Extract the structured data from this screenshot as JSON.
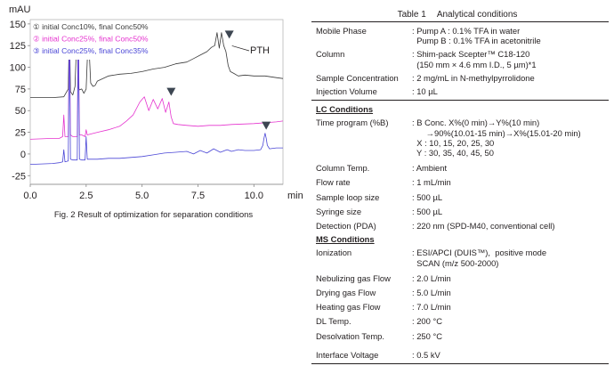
{
  "chart_data": {
    "type": "line",
    "ylabel": "mAU",
    "xlabel": "min",
    "xlim": [
      0,
      11.3
    ],
    "ylim": [
      -35,
      155
    ],
    "x_ticks": [
      "0.0",
      "2.5",
      "5.0",
      "7.5",
      "10.0"
    ],
    "x_tick_values": [
      0,
      2.5,
      5.0,
      7.5,
      10.0
    ],
    "y_ticks": [
      "150",
      "125",
      "100",
      "75",
      "50",
      "25",
      "0",
      "-25"
    ],
    "y_tick_values": [
      150,
      125,
      100,
      75,
      50,
      25,
      0,
      -25
    ],
    "legend": [
      {
        "marker": "①",
        "label": "initial Conc10%, final Conc50%",
        "color": "#3a3a3a"
      },
      {
        "marker": "②",
        "label": "initial Conc25%, final Conc50%",
        "color": "#e533cf"
      },
      {
        "marker": "③",
        "label": "initial Conc25%, final Conc35%",
        "color": "#4a46d6"
      }
    ],
    "legend_placement": "top-left",
    "annotation": "PTH",
    "series": [
      {
        "color": "#3a3a3a",
        "x": [
          0.0,
          1.0,
          1.5,
          1.7,
          1.75,
          1.8,
          1.85,
          1.9,
          2.0,
          2.1,
          2.15,
          2.2,
          2.3,
          2.4,
          2.5,
          2.6,
          2.7,
          2.8,
          2.9,
          3.0,
          3.5,
          4.0,
          4.5,
          5.0,
          5.5,
          6.0,
          6.5,
          7.0,
          7.3,
          7.6,
          7.9,
          8.1,
          8.25,
          8.35,
          8.45,
          8.55,
          8.65,
          8.75,
          8.85,
          8.95,
          9.1,
          9.3,
          9.6,
          10.0,
          10.5,
          11.0,
          11.3
        ],
        "y": [
          65,
          65,
          66,
          75,
          150,
          72,
          70,
          68,
          78,
          150,
          76,
          74,
          75,
          70,
          75,
          140,
          82,
          78,
          79,
          84,
          90,
          92,
          93,
          95,
          98,
          100,
          104,
          106,
          110,
          114,
          118,
          123,
          125,
          140,
          122,
          140,
          125,
          118,
          102,
          95,
          93,
          90,
          91,
          90,
          90,
          88,
          87
        ]
      },
      {
        "color": "#e533cf",
        "x": [
          0.0,
          1.0,
          1.3,
          1.45,
          1.5,
          1.55,
          1.7,
          1.75,
          1.8,
          1.9,
          2.1,
          2.15,
          2.2,
          2.3,
          2.45,
          2.5,
          2.55,
          2.7,
          3.0,
          3.5,
          4.0,
          4.3,
          4.6,
          4.9,
          5.1,
          5.3,
          5.5,
          5.7,
          5.9,
          6.05,
          6.2,
          6.3,
          6.4,
          6.6,
          7.0,
          7.5,
          8.0,
          8.5,
          9.0,
          10.0,
          11.0,
          11.3
        ],
        "y": [
          17,
          18,
          18,
          20,
          45,
          20,
          20,
          150,
          22,
          20,
          20,
          150,
          22,
          22,
          20,
          28,
          22,
          23,
          25,
          28,
          32,
          38,
          45,
          60,
          66,
          50,
          63,
          52,
          64,
          48,
          60,
          43,
          35,
          34,
          33,
          32,
          33,
          33,
          34,
          35,
          37,
          38
        ]
      },
      {
        "color": "#4a46d6",
        "x": [
          0.0,
          1.0,
          1.3,
          1.45,
          1.5,
          1.55,
          1.7,
          1.75,
          1.8,
          1.9,
          2.1,
          2.15,
          2.2,
          2.3,
          2.45,
          2.5,
          2.55,
          2.7,
          3.0,
          3.5,
          4.0,
          4.5,
          5.0,
          5.5,
          6.0,
          6.5,
          7.0,
          7.3,
          7.6,
          7.9,
          8.2,
          8.5,
          8.8,
          9.0,
          9.3,
          9.6,
          10.0,
          10.3,
          10.4,
          10.45,
          10.5,
          10.55,
          10.6,
          10.7,
          11.0,
          11.3
        ],
        "y": [
          -12,
          -11,
          -10,
          -9,
          5,
          -9,
          -8,
          150,
          -6,
          -7,
          -7,
          150,
          -6,
          -7,
          -7,
          20,
          -6,
          -6,
          -6,
          -5,
          -5,
          -4,
          -3,
          -1,
          1,
          2,
          3,
          0,
          4,
          1,
          6,
          2,
          5,
          3,
          5,
          4,
          4,
          5,
          10,
          18,
          24,
          18,
          10,
          6,
          7,
          7
        ]
      }
    ],
    "markers": [
      {
        "x": 8.9,
        "series": 0,
        "y": 133
      },
      {
        "x": 6.3,
        "series": 1,
        "y": 67
      },
      {
        "x": 10.55,
        "series": 2,
        "y": 28
      }
    ]
  },
  "figure": {
    "caption": "Fig. 2    Result of optimization for separation conditions"
  },
  "table": {
    "title_num": "Table 1",
    "title_text": "Analytical conditions",
    "rows": [
      {
        "label": "Mobile Phase",
        "values": [
          ": Pump A : 0.1% TFA in water",
          "  Pump B : 0.1% TFA in acetonitrile"
        ]
      },
      {
        "label": "Column",
        "values": [
          ": Shim-pack Scepter™ C18-120",
          "  (150 mm × 4.6 mm I.D., 5 µm)*1"
        ]
      },
      {
        "label": "Sample Concentration",
        "values": [
          ": 2 mg/mL in N-methylpyrrolidone"
        ]
      },
      {
        "label": "Injection Volume",
        "values": [
          ": 10 µL"
        ]
      }
    ],
    "section_lc": "LC Conditions",
    "lc_rows": [
      {
        "label": "Time program (%B)",
        "values": [
          ": B Conc. X%(0 min)→Y%(10 min)",
          "      →90%(10.01-15 min)→X%(15.01-20 min)",
          "  X : 10, 15, 20, 25, 30",
          "  Y : 30, 35, 40, 45, 50"
        ]
      },
      {
        "label": "Column Temp.",
        "values": [
          ": Ambient"
        ]
      },
      {
        "label": "Flow rate",
        "values": [
          ": 1 mL/min"
        ]
      },
      {
        "label": "Sample loop size",
        "values": [
          ": 500 µL"
        ]
      },
      {
        "label": "Syringe size",
        "values": [
          ": 500 µL"
        ]
      },
      {
        "label": "Detection (PDA)",
        "values": [
          ": 220 nm (SPD-M40, conventional cell)"
        ]
      }
    ],
    "section_ms": "MS Conditions",
    "ms_rows": [
      {
        "label": "Ionization",
        "values": [
          ": ESI/APCI (DUIS™),  positive mode",
          "  SCAN (m/z 500-2000)"
        ]
      },
      {
        "label": "Nebulizing gas Flow",
        "values": [
          ": 2.0 L/min"
        ]
      },
      {
        "label": "Drying gas Flow",
        "values": [
          ": 5.0 L/min"
        ]
      },
      {
        "label": "Heating gas Flow",
        "values": [
          ": 7.0 L/min"
        ]
      },
      {
        "label": "DL Temp.",
        "values": [
          ": 200 °C"
        ]
      },
      {
        "label": "Desolvation Temp.",
        "values": [
          ": 250 °C"
        ]
      },
      {
        "label": "Interface Voltage",
        "values": [
          ": 0.5 kV"
        ]
      }
    ]
  }
}
